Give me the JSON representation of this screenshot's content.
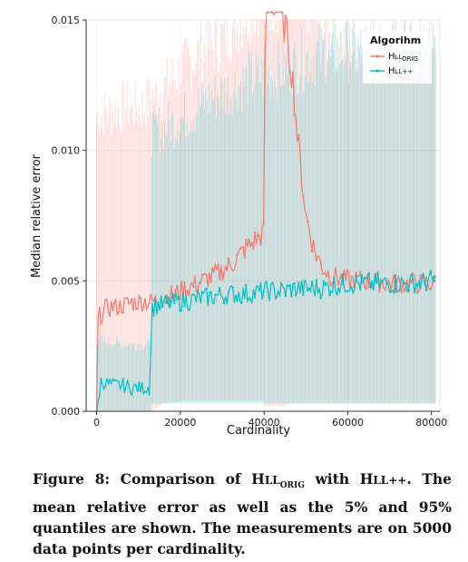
{
  "chart_data": {
    "type": "line",
    "xlabel": "Cardinality",
    "ylabel": "Median relative error",
    "xlim": [
      -2500,
      82000
    ],
    "ylim": [
      0,
      0.015
    ],
    "x_ticks": [
      0,
      20000,
      40000,
      60000,
      80000
    ],
    "x_tick_labels": [
      "0",
      "20000",
      "40000",
      "60000",
      "80000"
    ],
    "y_ticks": [
      0,
      0.005,
      0.01,
      0.015
    ],
    "y_tick_labels": [
      "0.000",
      "0.005",
      "0.010",
      "0.015"
    ],
    "grid": true,
    "legend": {
      "title": "Algorihm",
      "placement": "top-right",
      "entries": [
        {
          "main": "H",
          "small_caps": "LL",
          "sub": "ORIG"
        },
        {
          "main": "H",
          "small_caps": "LL++",
          "sub": ""
        }
      ]
    },
    "colors": {
      "hll_orig": "#f8766d",
      "hll_pp": "#00bfc4"
    },
    "series": [
      {
        "name_ref": 0,
        "color_key": "hll_orig",
        "x": [
          0,
          300,
          1000,
          2000,
          3000,
          5000,
          7000,
          10000,
          12000,
          13000,
          16000,
          20000,
          24000,
          28000,
          32000,
          36000,
          39000,
          40000,
          40300,
          41000,
          45000,
          46000,
          47000,
          48000,
          50000,
          52000,
          54000,
          56000,
          58000,
          60000,
          65000,
          70000,
          75000,
          81000
        ],
        "y": [
          0,
          0.0036,
          0.0037,
          0.0039,
          0.004,
          0.004,
          0.0041,
          0.0042,
          0.0042,
          0.0042,
          0.0043,
          0.0046,
          0.0049,
          0.0052,
          0.0056,
          0.0063,
          0.0067,
          0.0068,
          0.0155,
          0.0162,
          0.0148,
          0.0138,
          0.0125,
          0.0105,
          0.0075,
          0.0062,
          0.0055,
          0.0052,
          0.0051,
          0.005,
          0.005,
          0.0049,
          0.0049,
          0.0049
        ],
        "q05": [
          0,
          0,
          0,
          0,
          0,
          0,
          0,
          0,
          0,
          0,
          0.0003,
          0.0004,
          0.0004,
          0.0004,
          0.0004,
          0.0004,
          0.0004,
          0.0004,
          0.0002,
          0.0002,
          0.0002,
          0.0003,
          0.0003,
          0.0003,
          0.0003,
          0.0003,
          0.0003,
          0.0003,
          0.0003,
          0.0003,
          0.0003,
          0.0003,
          0.0003,
          0.0003
        ],
        "q95": [
          0.0115,
          0.0115,
          0.0115,
          0.0116,
          0.0116,
          0.0117,
          0.0118,
          0.0118,
          0.0119,
          0.0122,
          0.0125,
          0.0132,
          0.0138,
          0.0142,
          0.0148,
          0.0155,
          0.016,
          0.016,
          0.016,
          0.016,
          0.016,
          0.016,
          0.016,
          0.016,
          0.016,
          0.0155,
          0.0148,
          0.0145,
          0.0143,
          0.0142,
          0.0141,
          0.014,
          0.014,
          0.014
        ]
      },
      {
        "name_ref": 1,
        "color_key": "hll_pp",
        "x": [
          0,
          1000,
          2000,
          4000,
          6000,
          8000,
          10000,
          12000,
          12900,
          13000,
          16000,
          20000,
          24000,
          28000,
          32000,
          36000,
          40000,
          44000,
          48000,
          52000,
          56000,
          60000,
          65000,
          70000,
          75000,
          81000
        ],
        "y": [
          0,
          0.0011,
          0.0011,
          0.001,
          0.001,
          0.0009,
          0.0009,
          0.0009,
          0.0009,
          0.004,
          0.0041,
          0.0042,
          0.0043,
          0.0044,
          0.0045,
          0.0045,
          0.0046,
          0.0046,
          0.0047,
          0.0047,
          0.0048,
          0.0049,
          0.0049,
          0.0049,
          0.0049,
          0.005
        ],
        "q05": [
          0,
          0,
          0,
          0,
          0,
          0,
          0,
          0,
          0,
          0.0003,
          0.0003,
          0.0003,
          0.0003,
          0.0003,
          0.0003,
          0.0003,
          0.0003,
          0.0003,
          0.0003,
          0.0003,
          0.0003,
          0.0003,
          0.0003,
          0.0003,
          0.0003,
          0.0003
        ],
        "q95": [
          0.0028,
          0.0028,
          0.0027,
          0.0027,
          0.0026,
          0.0026,
          0.0026,
          0.0026,
          0.0026,
          0.0108,
          0.011,
          0.0113,
          0.0118,
          0.0122,
          0.0125,
          0.0128,
          0.013,
          0.0132,
          0.0135,
          0.0138,
          0.014,
          0.014,
          0.014,
          0.014,
          0.014,
          0.014
        ]
      }
    ]
  },
  "caption": {
    "label": "Figure 8:",
    "part1": "Comparison of",
    "hll_main": "H",
    "hll_small": "LL",
    "hll_sub": "ORIG",
    "part2": "with",
    "hllpp_main": "H",
    "hllpp_small": "LL++",
    "part3": ". The mean relative error as well as the 5% and 95% quantiles are shown. The measurements are on 5000 data points per cardinality."
  }
}
